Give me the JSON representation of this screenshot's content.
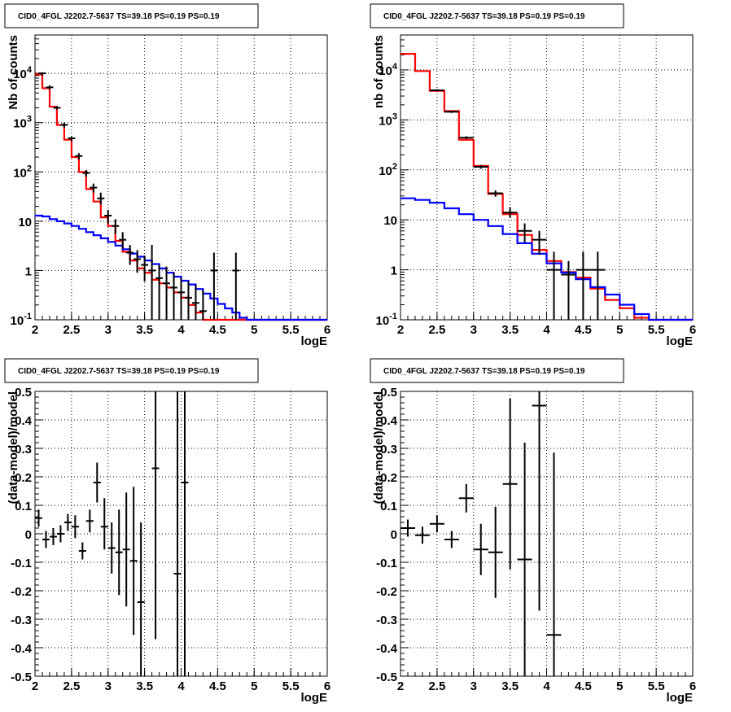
{
  "chart_data": [
    {
      "type": "line",
      "title": "CID0_4FGL J2202.7-5637 TS=39.18 PS=0.19 PS=0.19",
      "xlabel": "logE",
      "ylabel": "Nb of counts",
      "xlim": [
        2,
        6
      ],
      "ylim": [
        0.1,
        60000
      ],
      "yscale": "log",
      "grid": true,
      "x_ticks": [
        "2",
        "2.5",
        "3",
        "3.5",
        "4",
        "4.5",
        "5",
        "5.5",
        "6"
      ],
      "y_ticks": [
        "10^-1",
        "1",
        "10",
        "10^2",
        "10^3",
        "10^4"
      ],
      "series": [
        {
          "style": "step",
          "color": "#ff0000",
          "edges": [
            2.0,
            2.1,
            2.2,
            2.3,
            2.4,
            2.5,
            2.6,
            2.7,
            2.8,
            2.9,
            3.0,
            3.1,
            3.2,
            3.3,
            3.4,
            3.5,
            3.6,
            3.7,
            3.8,
            3.9,
            4.0,
            4.1,
            4.2,
            4.3,
            4.4,
            4.5,
            4.6,
            4.7,
            4.8,
            4.9,
            5.0,
            5.1,
            5.2,
            5.3,
            5.4,
            5.5,
            5.6,
            5.7,
            5.8,
            5.9,
            6.0
          ],
          "values": [
            9500,
            5000,
            2100,
            900,
            450,
            200,
            100,
            45,
            25,
            12,
            8,
            4,
            2.4,
            1.6,
            1.1,
            0.9,
            0.65,
            0.55,
            0.45,
            0.36,
            0.28,
            0.2,
            0.14,
            0.1,
            0.1,
            0.1,
            0.1,
            0.1,
            0.1,
            0.1,
            0.1,
            0.1,
            0.1,
            0.1,
            0.1,
            0.1,
            0.1,
            0.1,
            0.1,
            0.1
          ]
        },
        {
          "style": "step",
          "color": "#0000ff",
          "edges": [
            2.0,
            2.1,
            2.2,
            2.3,
            2.4,
            2.5,
            2.6,
            2.7,
            2.8,
            2.9,
            3.0,
            3.1,
            3.2,
            3.3,
            3.4,
            3.5,
            3.6,
            3.7,
            3.8,
            3.9,
            4.0,
            4.1,
            4.2,
            4.3,
            4.4,
            4.5,
            4.6,
            4.7,
            4.8,
            4.9,
            5.0,
            5.1,
            5.2,
            5.3,
            5.4,
            5.5,
            5.6,
            5.7,
            5.8,
            5.9,
            6.0
          ],
          "values": [
            13,
            12.5,
            11,
            10,
            9,
            8,
            7,
            6,
            5.2,
            4.5,
            3.8,
            3.2,
            2.7,
            2.2,
            1.9,
            1.6,
            1.35,
            1.1,
            0.9,
            0.75,
            0.62,
            0.52,
            0.42,
            0.34,
            0.27,
            0.21,
            0.17,
            0.14,
            0.11,
            0.1,
            0.1,
            0.1,
            0.1,
            0.1,
            0.1,
            0.1,
            0.1,
            0.1,
            0.1,
            0.1
          ]
        },
        {
          "style": "points",
          "color": "#000000",
          "x": [
            2.1,
            2.2,
            2.3,
            2.4,
            2.5,
            2.6,
            2.7,
            2.8,
            2.9,
            3.0,
            3.1,
            3.2,
            3.3,
            3.4,
            3.5,
            3.6,
            3.7,
            3.8,
            3.9,
            4.0,
            4.1,
            4.2,
            4.3,
            4.45,
            4.75
          ],
          "xerr": 0.05,
          "y": [
            10000,
            5200,
            2000,
            900,
            480,
            210,
            95,
            48,
            29,
            13,
            8,
            4.2,
            2.3,
            1.7,
            1.3,
            1.0,
            0.7,
            0.55,
            0.45,
            0.36,
            0.28,
            0.22,
            0.15,
            1,
            1
          ],
          "yerr": [
            [
              9000,
              10500
            ],
            [
              4700,
              5700
            ],
            [
              1850,
              2150
            ],
            [
              800,
              1000
            ],
            [
              420,
              520
            ],
            [
              180,
              240
            ],
            [
              80,
              110
            ],
            [
              38,
              58
            ],
            [
              22,
              38
            ],
            [
              9,
              17
            ],
            [
              5.5,
              11
            ],
            [
              2.8,
              6
            ],
            [
              1.3,
              3.3
            ],
            [
              0.9,
              2.6
            ],
            [
              0.6,
              2
            ],
            [
              0.1,
              3.3
            ],
            [
              0.1,
              1.3
            ],
            [
              0.1,
              1.2
            ],
            [
              0.1,
              0.9
            ],
            [
              0.1,
              0.7
            ],
            [
              0.1,
              0.6
            ],
            [
              0.1,
              0.5
            ],
            [
              0.1,
              0.4
            ],
            [
              0.1,
              2.3
            ],
            [
              0.1,
              2.3
            ]
          ],
          "show_from_index": 0
        }
      ]
    },
    {
      "type": "line",
      "title": "CID0_4FGL J2202.7-5637 TS=39.18 PS=0.19 PS=0.19",
      "xlabel": "logE",
      "ylabel": "nb of counts",
      "xlim": [
        2,
        6
      ],
      "ylim": [
        0.1,
        50000
      ],
      "yscale": "log",
      "grid": true,
      "x_ticks": [
        "2",
        "2.5",
        "3",
        "3.5",
        "4",
        "4.5",
        "5",
        "5.5",
        "6"
      ],
      "y_ticks": [
        "10^-1",
        "1",
        "10",
        "10^2",
        "10^3",
        "10^4"
      ],
      "series": [
        {
          "style": "step",
          "color": "#ff0000",
          "edges": [
            2.0,
            2.2,
            2.4,
            2.6,
            2.8,
            3.0,
            3.2,
            3.4,
            3.6,
            3.8,
            4.0,
            4.2,
            4.4,
            4.6,
            4.8,
            5.0,
            5.2,
            5.4,
            5.6,
            5.8,
            6.0
          ],
          "values": [
            21000,
            9500,
            3800,
            1500,
            400,
            120,
            33,
            13,
            5,
            2.5,
            1.5,
            0.9,
            0.7,
            0.42,
            0.25,
            0.17,
            0.11,
            0.1,
            0.1,
            0.1
          ]
        },
        {
          "style": "step",
          "color": "#0000ff",
          "edges": [
            2.0,
            2.2,
            2.4,
            2.6,
            2.8,
            3.0,
            3.2,
            3.4,
            3.6,
            3.8,
            4.0,
            4.2,
            4.4,
            4.6,
            4.8,
            5.0,
            5.2,
            5.4,
            5.6,
            5.8,
            6.0
          ],
          "values": [
            27,
            25,
            22,
            17,
            13,
            10,
            7.5,
            5.2,
            3.4,
            2.1,
            1.35,
            0.88,
            0.65,
            0.45,
            0.32,
            0.2,
            0.13,
            0.1,
            0.1,
            0.1
          ]
        },
        {
          "style": "points",
          "color": "#000000",
          "x": [
            2.1,
            2.3,
            2.5,
            2.7,
            2.9,
            3.1,
            3.3,
            3.5,
            3.7,
            3.9,
            4.1,
            4.3,
            4.5,
            4.7
          ],
          "xerr": 0.1,
          "y": [
            20000,
            9300,
            3900,
            1450,
            440,
            115,
            34,
            14,
            6,
            4,
            1,
            0.8,
            1,
            1
          ],
          "yerr": [
            [
              19000,
              21000
            ],
            [
              8800,
              9800
            ],
            [
              3700,
              4100
            ],
            [
              1380,
              1520
            ],
            [
              410,
              470
            ],
            [
              105,
              125
            ],
            [
              29,
              39
            ],
            [
              11,
              18
            ],
            [
              3.5,
              8.5
            ],
            [
              2,
              6
            ],
            [
              0.1,
              2.3
            ],
            [
              0.1,
              1.5
            ],
            [
              0.1,
              2.3
            ],
            [
              0.1,
              2.3
            ]
          ],
          "show_from_index": 2
        }
      ]
    },
    {
      "type": "scatter",
      "title": "CID0_4FGL J2202.7-5637 TS=39.18 PS=0.19 PS=0.19",
      "xlabel": "logE",
      "ylabel": "(data-model)/model",
      "xlim": [
        2,
        6
      ],
      "ylim": [
        -0.5,
        0.5
      ],
      "grid": true,
      "x_ticks": [
        "2",
        "2.5",
        "3",
        "3.5",
        "4",
        "4.5",
        "5",
        "5.5",
        "6"
      ],
      "y_ticks": [
        "-0.5",
        "-0.4",
        "-0.3",
        "-0.2",
        "-0.1",
        "0",
        "0.1",
        "0.2",
        "0.3",
        "0.4",
        "0.5"
      ],
      "points": {
        "x": [
          2.05,
          2.15,
          2.25,
          2.35,
          2.45,
          2.55,
          2.65,
          2.75,
          2.85,
          2.95,
          3.05,
          3.15,
          3.25,
          3.35,
          3.45,
          3.65,
          3.95,
          4.05
        ],
        "y": [
          0.055,
          -0.02,
          -0.01,
          0.0,
          0.04,
          0.025,
          -0.06,
          0.045,
          0.18,
          0.025,
          -0.05,
          -0.065,
          -0.055,
          -0.095,
          -0.24,
          0.23,
          -0.14,
          0.18
        ],
        "xerr": 0.05,
        "yerr_lo": [
          0.03,
          0.03,
          0.03,
          0.03,
          0.03,
          0.04,
          0.03,
          0.04,
          0.07,
          0.08,
          0.09,
          0.15,
          0.2,
          0.26,
          0.28,
          0.6,
          0.7,
          0.7
        ],
        "yerr_hi": [
          0.03,
          0.03,
          0.03,
          0.03,
          0.03,
          0.04,
          0.03,
          0.04,
          0.07,
          0.1,
          0.09,
          0.15,
          0.2,
          0.26,
          0.28,
          0.6,
          0.7,
          0.7
        ]
      }
    },
    {
      "type": "scatter",
      "title": "CID0_4FGL J2202.7-5637 TS=39.18 PS=0.19 PS=0.19",
      "xlabel": "logE",
      "ylabel": "(data-model)/model",
      "xlim": [
        2,
        6
      ],
      "ylim": [
        -0.5,
        0.5
      ],
      "grid": true,
      "x_ticks": [
        "2",
        "2.5",
        "3",
        "3.5",
        "4",
        "4.5",
        "5",
        "5.5",
        "6"
      ],
      "y_ticks": [
        "-0.5",
        "-0.4",
        "-0.3",
        "-0.2",
        "-0.1",
        "0",
        "0.1",
        "0.2",
        "0.3",
        "0.4",
        "0.5"
      ],
      "points": {
        "x": [
          2.1,
          2.3,
          2.5,
          2.7,
          2.9,
          3.1,
          3.3,
          3.5,
          3.7,
          3.9,
          4.1
        ],
        "y": [
          0.02,
          -0.005,
          0.035,
          -0.02,
          0.125,
          -0.055,
          -0.065,
          0.175,
          -0.09,
          0.45,
          -0.355
        ],
        "xerr": 0.1,
        "yerr_lo": [
          0.03,
          0.03,
          0.03,
          0.03,
          0.05,
          0.09,
          0.16,
          0.3,
          0.42,
          0.72,
          0.7
        ],
        "yerr_hi": [
          0.03,
          0.03,
          0.03,
          0.03,
          0.05,
          0.09,
          0.16,
          0.3,
          0.41,
          0.72,
          0.64
        ]
      }
    }
  ]
}
